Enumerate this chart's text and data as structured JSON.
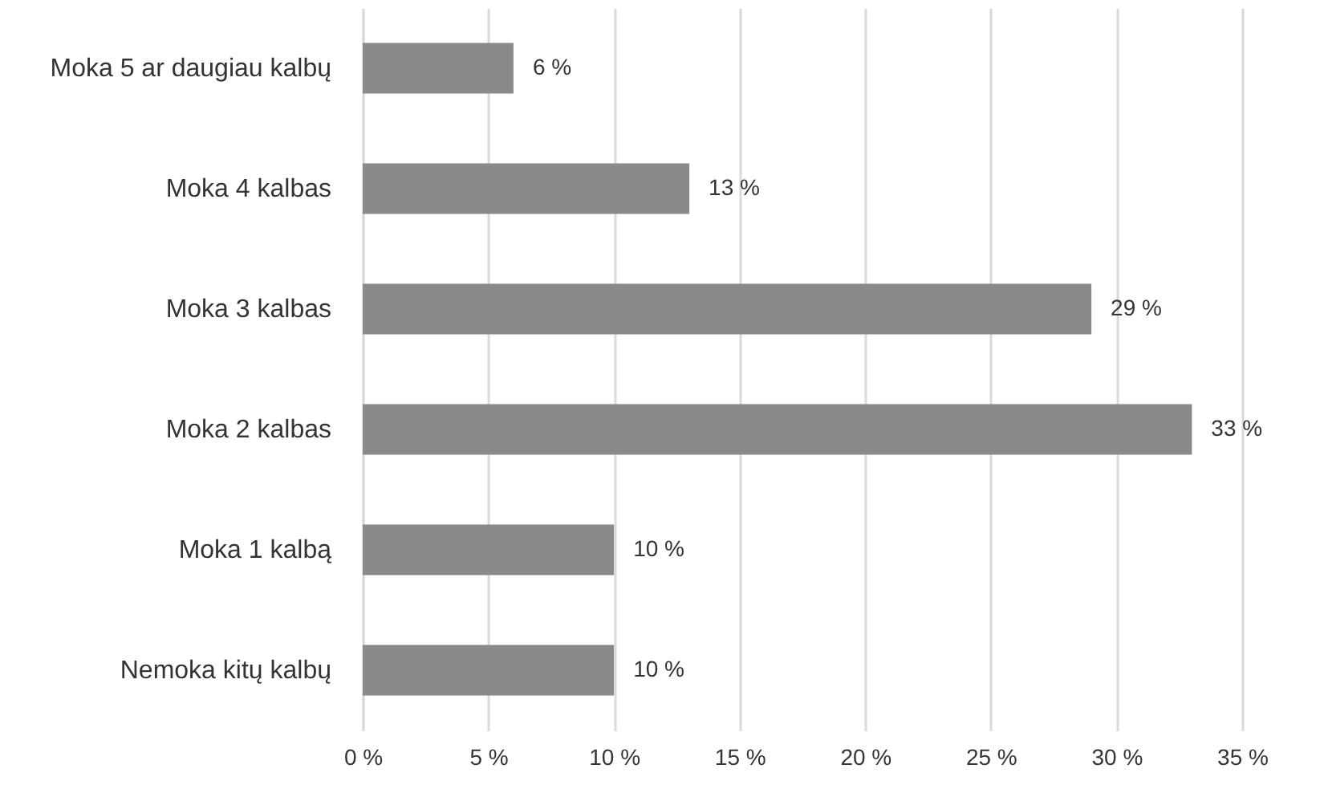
{
  "chart_data": {
    "type": "bar",
    "orientation": "horizontal",
    "categories": [
      "Moka 5 ar daugiau kalbų",
      "Moka 4 kalbas",
      "Moka 3 kalbas",
      "Moka 2 kalbas",
      "Moka 1 kalbą",
      "Nemoka kitų kalbų"
    ],
    "values": [
      6,
      13,
      29,
      33,
      10,
      10
    ],
    "value_labels": [
      "6 %",
      "13 %",
      "29 %",
      "33 %",
      "10 %",
      "10 %"
    ],
    "color": "#898a8c",
    "xlim": [
      0,
      35
    ],
    "xticks": [
      {
        "value": 0,
        "label": "0 %"
      },
      {
        "value": 5,
        "label": "5 %"
      },
      {
        "value": 10,
        "label": "10 %"
      },
      {
        "value": 15,
        "label": "15 %"
      },
      {
        "value": 20,
        "label": "20 %"
      },
      {
        "value": 25,
        "label": "25 %"
      },
      {
        "value": 30,
        "label": "30 %"
      },
      {
        "value": 35,
        "label": "35 %"
      }
    ],
    "grid": "x"
  }
}
